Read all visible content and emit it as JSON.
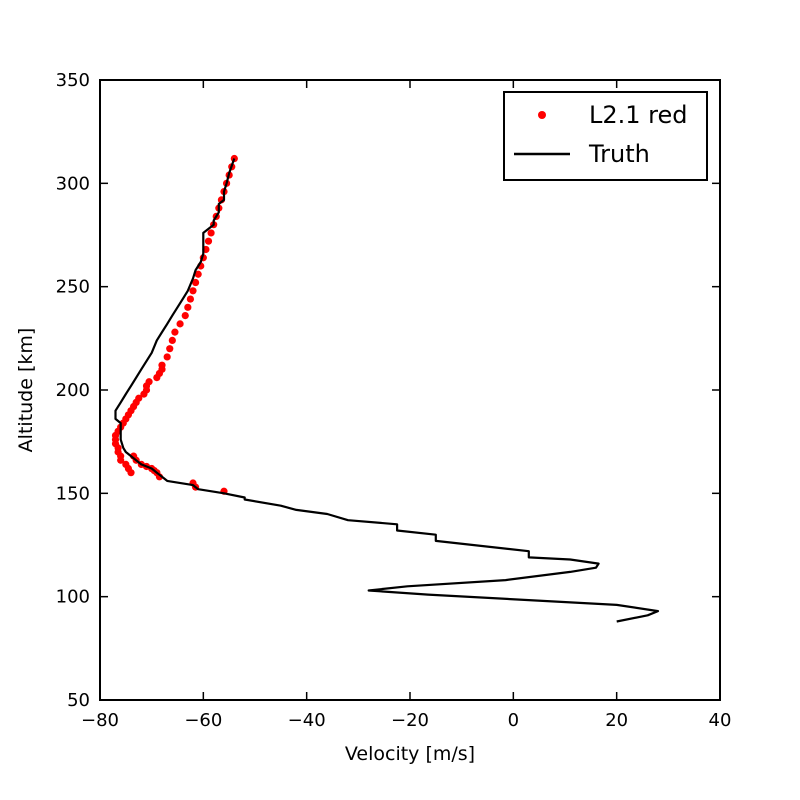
{
  "chart_data": {
    "type": "line",
    "title": "",
    "xlabel": "Velocity [m/s]",
    "ylabel": "Altitude [km]",
    "xlim": [
      -80,
      40
    ],
    "ylim": [
      50,
      350
    ],
    "xticks": [
      -80,
      -60,
      -40,
      -20,
      0,
      20,
      40
    ],
    "yticks": [
      50,
      100,
      150,
      200,
      250,
      300,
      350
    ],
    "xtick_labels": [
      "−80",
      "−60",
      "−40",
      "−20",
      "0",
      "20",
      "40"
    ],
    "ytick_labels": [
      "50",
      "100",
      "150",
      "200",
      "250",
      "300",
      "350"
    ],
    "grid": false,
    "legend_position": "top-right",
    "series": [
      {
        "name": "L2.1 red",
        "style": "scatter",
        "color": "#ff0000",
        "x": [
          -54,
          -54.5,
          -55,
          -55.5,
          -56,
          -56.5,
          -57,
          -57.5,
          -58,
          -58.5,
          -59,
          -59.5,
          -60,
          -60.5,
          -61,
          -61.5,
          -62,
          -62.5,
          -63,
          -63.5,
          -64.5,
          -65.5,
          -66,
          -66.5,
          -67,
          -68,
          -68,
          -68.5,
          -69,
          -70.5,
          -71,
          -71,
          -71.5,
          -72.5,
          -73,
          -73.5,
          -74,
          -74.5,
          -75,
          -75.5,
          -76,
          -76.5,
          -77,
          -77,
          -77,
          -76.5,
          -76.5,
          -76,
          -76,
          -75,
          -74.5,
          -74,
          -73.5,
          -73,
          -72,
          -71,
          -70,
          -69.5,
          -69,
          -68.5,
          -62,
          -61.5,
          -56
        ],
        "y": [
          312,
          308,
          304,
          300,
          296,
          292,
          288,
          284,
          280,
          276,
          272,
          268,
          264,
          260,
          256,
          252,
          248,
          244,
          240,
          236,
          232,
          228,
          224,
          220,
          216,
          212,
          210,
          208,
          206,
          204,
          202,
          200,
          198,
          196,
          194,
          192,
          190,
          188,
          186,
          184,
          182,
          180,
          178,
          176,
          174,
          172,
          170,
          168,
          166,
          164,
          162,
          160,
          168,
          166,
          164,
          163,
          162,
          161,
          160,
          158,
          155,
          153,
          151
        ]
      },
      {
        "name": "Truth",
        "style": "line",
        "color": "#000000",
        "x": [
          -54,
          -55,
          -55.5,
          -56,
          -56,
          -57,
          -57,
          -58,
          -58,
          -60,
          -60,
          -60.5,
          -61.5,
          -62,
          -63,
          -64,
          -65,
          -66,
          -67,
          -68,
          -69,
          -70,
          -71,
          -72,
          -73,
          -74,
          -75,
          -76,
          -77,
          -77,
          -76,
          -76,
          -75.5,
          -75,
          -74,
          -73,
          -72,
          -70,
          -69,
          -68,
          -67,
          -62,
          -61,
          -56,
          -52,
          -52,
          -45,
          -42,
          -36,
          -32,
          -22.5,
          -22.5,
          -15,
          -15,
          3,
          3,
          11,
          16.5,
          16,
          11,
          -1.5,
          -20.5,
          -28,
          -16.5,
          20,
          28,
          26,
          20
        ],
        "y": [
          312,
          305,
          300,
          296,
          292,
          290,
          286,
          282,
          280,
          276,
          266,
          262,
          258,
          254,
          248,
          244,
          240,
          236,
          232,
          228,
          224,
          218,
          214,
          210,
          206,
          202,
          198,
          194,
          190,
          186,
          184,
          176,
          172,
          170,
          168,
          166,
          164,
          162,
          160,
          158,
          156,
          154,
          152,
          150,
          148,
          147,
          144,
          142,
          140,
          137,
          135,
          132,
          130,
          127,
          122,
          119,
          118,
          116,
          114,
          112,
          108,
          105,
          103,
          101,
          96,
          93,
          91,
          88
        ]
      }
    ]
  }
}
